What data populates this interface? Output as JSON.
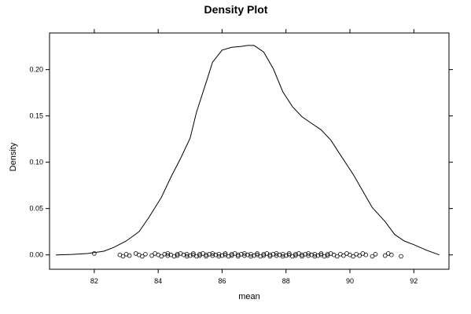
{
  "chart_data": {
    "type": "line",
    "title": "Density Plot",
    "xlabel": "mean",
    "ylabel": "Density",
    "xlim": [
      80.6,
      93.1
    ],
    "ylim": [
      -0.0155,
      0.2395
    ],
    "x_ticks": [
      82,
      84,
      86,
      88,
      90,
      92
    ],
    "x_tick_labels": [
      "82",
      "84",
      "86",
      "88",
      "90",
      "92"
    ],
    "y_ticks": [
      0.0,
      0.05,
      0.1,
      0.15,
      0.2
    ],
    "y_tick_labels": [
      "0.00",
      "0.05",
      "0.10",
      "0.15",
      "0.20"
    ],
    "grid": false,
    "series": [
      {
        "name": "",
        "x": [
          80.8,
          81.3,
          81.8,
          82.3,
          82.6,
          83.0,
          83.4,
          83.7,
          84.1,
          84.4,
          84.7,
          85.0,
          85.2,
          85.5,
          85.7,
          86.0,
          86.3,
          86.6,
          86.8,
          87.0,
          87.3,
          87.6,
          87.9,
          88.2,
          88.5,
          88.8,
          89.1,
          89.4,
          89.7,
          90.1,
          90.4,
          90.7,
          91.1,
          91.4,
          91.7,
          92.0,
          92.4,
          92.8
        ],
        "y": [
          0.0,
          0.0005,
          0.0015,
          0.004,
          0.008,
          0.015,
          0.025,
          0.04,
          0.062,
          0.084,
          0.104,
          0.126,
          0.154,
          0.186,
          0.208,
          0.221,
          0.224,
          0.225,
          0.226,
          0.226,
          0.219,
          0.201,
          0.176,
          0.16,
          0.149,
          0.142,
          0.135,
          0.124,
          0.108,
          0.087,
          0.069,
          0.051,
          0.036,
          0.022,
          0.015,
          0.011,
          0.005,
          0.0
        ]
      }
    ],
    "rug": {
      "y": 0.0,
      "x": [
        82.0,
        82.8,
        82.9,
        83.0,
        83.1,
        83.3,
        83.4,
        83.5,
        83.6,
        83.8,
        83.9,
        84.0,
        84.1,
        84.2,
        84.3,
        84.3,
        84.4,
        84.5,
        84.6,
        84.6,
        84.7,
        84.8,
        84.9,
        84.9,
        85.0,
        85.1,
        85.1,
        85.2,
        85.3,
        85.3,
        85.4,
        85.5,
        85.5,
        85.6,
        85.7,
        85.7,
        85.8,
        85.9,
        85.9,
        86.0,
        86.1,
        86.1,
        86.2,
        86.3,
        86.3,
        86.4,
        86.5,
        86.5,
        86.6,
        86.7,
        86.7,
        86.8,
        86.9,
        86.9,
        87.0,
        87.1,
        87.1,
        87.2,
        87.3,
        87.3,
        87.4,
        87.5,
        87.5,
        87.6,
        87.7,
        87.7,
        87.8,
        87.9,
        87.9,
        88.0,
        88.1,
        88.1,
        88.2,
        88.3,
        88.3,
        88.4,
        88.5,
        88.5,
        88.6,
        88.7,
        88.7,
        88.8,
        88.9,
        88.9,
        89.0,
        89.1,
        89.1,
        89.2,
        89.3,
        89.3,
        89.4,
        89.5,
        89.6,
        89.7,
        89.8,
        89.9,
        90.0,
        90.1,
        90.2,
        90.3,
        90.4,
        90.5,
        90.7,
        90.8,
        91.1,
        91.2,
        91.3,
        91.6
      ]
    }
  }
}
